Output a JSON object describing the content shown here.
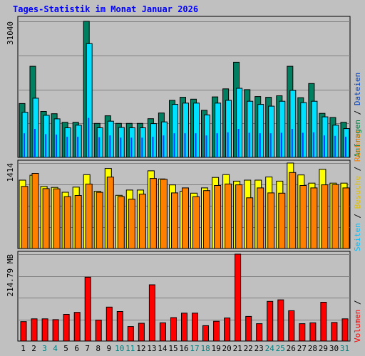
{
  "title": "Tages-Statistik im Monat Januar 2026",
  "right_legend": {
    "top": [
      {
        "text": "Anfragen",
        "color": "#008040"
      },
      {
        "text": " / ",
        "color": "#000000"
      },
      {
        "text": "Dateien",
        "color": "#0040c0"
      }
    ],
    "middle": [
      {
        "text": "Seiten",
        "color": "#00c0ff"
      },
      {
        "text": " / ",
        "color": "#000000"
      },
      {
        "text": "Besuche",
        "color": "#e0c000"
      },
      {
        "text": " / ",
        "color": "#000000"
      },
      {
        "text": "Rechner",
        "color": "#ff8000"
      }
    ],
    "bottom": [
      {
        "text": "Volumen",
        "color": "#ff0000"
      },
      {
        "text": " / ",
        "color": "#000000"
      }
    ]
  },
  "chart_data": [
    {
      "type": "bar",
      "panel": "top",
      "max_label": "31040",
      "ylim": [
        0,
        31040
      ],
      "categories": [
        "1",
        "2",
        "3",
        "4",
        "5",
        "6",
        "7",
        "8",
        "9",
        "10",
        "11",
        "12",
        "13",
        "14",
        "15",
        "16",
        "17",
        "18",
        "19",
        "20",
        "21",
        "22",
        "23",
        "24",
        "25",
        "26",
        "27",
        "28",
        "29",
        "30",
        "31"
      ],
      "series": [
        {
          "name": "Anfragen",
          "color": "#008060",
          "values": [
            12290,
            20790,
            10480,
            9960,
            8000,
            8000,
            31040,
            7750,
            9490,
            7750,
            7750,
            7750,
            8820,
            10120,
            13010,
            13710,
            13280,
            10740,
            13800,
            15630,
            21710,
            15450,
            13880,
            13710,
            14060,
            20790,
            13620,
            16850,
            10040,
            9100,
            8000
          ]
        },
        {
          "name": "Seiten",
          "color": "#00e0ff",
          "values": [
            10280,
            13500,
            9600,
            8790,
            6740,
            7350,
            25960,
            6740,
            8260,
            6830,
            6740,
            6740,
            7700,
            8090,
            12090,
            12390,
            12390,
            9690,
            12390,
            13020,
            15770,
            12810,
            12090,
            11690,
            12810,
            15290,
            12490,
            12810,
            9250,
            7350,
            6570
          ]
        },
        {
          "name": "Dateien",
          "color": "#0040ff",
          "values": [
            5500,
            6500,
            5300,
            5200,
            4700,
            4700,
            9000,
            4600,
            5000,
            4500,
            4500,
            4500,
            4700,
            5000,
            5500,
            5500,
            5500,
            5000,
            5500,
            5700,
            6500,
            5600,
            5500,
            5500,
            5600,
            6500,
            5600,
            5700,
            5000,
            4900,
            4700
          ]
        }
      ]
    },
    {
      "type": "bar",
      "panel": "middle",
      "max_label": "1414",
      "ylim": [
        0,
        1414
      ],
      "categories": [
        "1",
        "2",
        "3",
        "4",
        "5",
        "6",
        "7",
        "8",
        "9",
        "10",
        "11",
        "12",
        "13",
        "14",
        "15",
        "16",
        "17",
        "18",
        "19",
        "20",
        "21",
        "22",
        "23",
        "24",
        "25",
        "26",
        "27",
        "28",
        "29",
        "30",
        "31"
      ],
      "series": [
        {
          "name": "Besuche",
          "color": "#ffff00",
          "values": [
            1131,
            1212,
            1026,
            1011,
            931,
            1016,
            1222,
            947,
            1325,
            880,
            967,
            967,
            1286,
            1151,
            1052,
            947,
            916,
            1003,
            1176,
            1223,
            1115,
            1131,
            1131,
            1183,
            1115,
            1414,
            1217,
            1082,
            1310,
            1082,
            1082
          ]
        },
        {
          "name": "Rechner",
          "color": "#ff8000",
          "values": [
            1027,
            1243,
            991,
            987,
            858,
            878,
            1066,
            930,
            1182,
            860,
            815,
            899,
            1160,
            1145,
            920,
            1003,
            858,
            958,
            1043,
            1068,
            1053,
            839,
            1003,
            920,
            915,
            1257,
            1043,
            1003,
            1053,
            1058,
            1003
          ]
        }
      ]
    },
    {
      "type": "bar",
      "panel": "bottom",
      "max_label": "214.79 MB",
      "ylim": [
        0,
        214.79
      ],
      "categories": [
        "1",
        "2",
        "3",
        "4",
        "5",
        "6",
        "7",
        "8",
        "9",
        "10",
        "11",
        "12",
        "13",
        "14",
        "15",
        "16",
        "17",
        "18",
        "19",
        "20",
        "21",
        "22",
        "23",
        "24",
        "25",
        "26",
        "27",
        "28",
        "29",
        "30",
        "31"
      ],
      "series": [
        {
          "name": "Volumen",
          "color": "#ff0000",
          "values": [
            48,
            55,
            55,
            53,
            66,
            71,
            158,
            52,
            84,
            73,
            36,
            44,
            139,
            45,
            58,
            69,
            69,
            38,
            49,
            57,
            214.79,
            61,
            43,
            98,
            102,
            75,
            43,
            45,
            96,
            46,
            55
          ]
        }
      ]
    }
  ],
  "x_labels": [
    {
      "text": "1",
      "color": "#000000"
    },
    {
      "text": "2",
      "color": "#000000"
    },
    {
      "text": "3",
      "color": "#008080"
    },
    {
      "text": "4",
      "color": "#008080"
    },
    {
      "text": "5",
      "color": "#000000"
    },
    {
      "text": "6",
      "color": "#000000"
    },
    {
      "text": "7",
      "color": "#000000"
    },
    {
      "text": "8",
      "color": "#000000"
    },
    {
      "text": "9",
      "color": "#000000"
    },
    {
      "text": "10",
      "color": "#008080"
    },
    {
      "text": "11",
      "color": "#008080"
    },
    {
      "text": "12",
      "color": "#000000"
    },
    {
      "text": "13",
      "color": "#000000"
    },
    {
      "text": "14",
      "color": "#000000"
    },
    {
      "text": "15",
      "color": "#000000"
    },
    {
      "text": "16",
      "color": "#000000"
    },
    {
      "text": "17",
      "color": "#008080"
    },
    {
      "text": "18",
      "color": "#008080"
    },
    {
      "text": "19",
      "color": "#000000"
    },
    {
      "text": "20",
      "color": "#000000"
    },
    {
      "text": "21",
      "color": "#000000"
    },
    {
      "text": "22",
      "color": "#000000"
    },
    {
      "text": "23",
      "color": "#000000"
    },
    {
      "text": "24",
      "color": "#008080"
    },
    {
      "text": "25",
      "color": "#008080"
    },
    {
      "text": "26",
      "color": "#000000"
    },
    {
      "text": "27",
      "color": "#000000"
    },
    {
      "text": "28",
      "color": "#000000"
    },
    {
      "text": "29",
      "color": "#000000"
    },
    {
      "text": "30",
      "color": "#000000"
    },
    {
      "text": "31",
      "color": "#008080"
    }
  ]
}
